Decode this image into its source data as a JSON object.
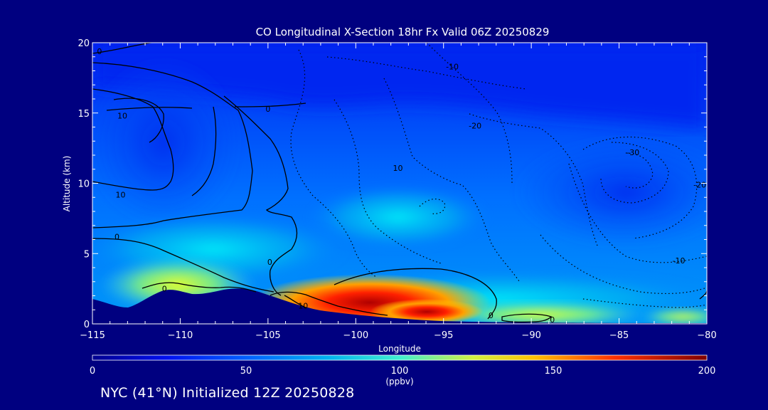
{
  "chart_data": {
    "type": "heatmap",
    "title": "CO Longitudinal X-Section 18hr  Fx Valid 06Z 20250829",
    "xlabel": "Longitude",
    "ylabel": "Altitude (km)",
    "xlim": [
      -115,
      -80
    ],
    "ylim": [
      0,
      20
    ],
    "xticks": [
      "-115",
      "-110",
      "-105",
      "-100",
      "-95",
      "-90",
      "-85",
      "-80"
    ],
    "xtick_values": [
      -115,
      -110,
      -105,
      -100,
      -95,
      -90,
      -85,
      -80
    ],
    "yticks": [
      "0",
      "5",
      "10",
      "15",
      "20"
    ],
    "ytick_values": [
      0,
      5,
      10,
      15,
      20
    ],
    "colorbar": {
      "min": 0,
      "max": 200,
      "ticks": [
        "0",
        "50",
        "100",
        "150",
        "200"
      ],
      "tick_values": [
        0,
        50,
        100,
        150,
        200
      ],
      "unit": "(ppbv)"
    },
    "contour_labels": [
      {
        "text": "0",
        "lon": -114.6,
        "alt": 19.4
      },
      {
        "text": "10",
        "lon": -113.3,
        "alt": 14.8
      },
      {
        "text": "0",
        "lon": -105.0,
        "alt": 15.3
      },
      {
        "text": "10",
        "lon": -113.4,
        "alt": 9.2
      },
      {
        "text": "0",
        "lon": -113.6,
        "alt": 6.2
      },
      {
        "text": "0",
        "lon": -110.9,
        "alt": 2.5
      },
      {
        "text": "0",
        "lon": -104.9,
        "alt": 4.4
      },
      {
        "text": "10",
        "lon": -103.0,
        "alt": 1.3
      },
      {
        "text": "10",
        "lon": -97.6,
        "alt": 11.1
      },
      {
        "text": "-10",
        "lon": -94.5,
        "alt": 18.3
      },
      {
        "text": "-20",
        "lon": -93.2,
        "alt": 14.1
      },
      {
        "text": "-30",
        "lon": -84.2,
        "alt": 12.2
      },
      {
        "text": "-20",
        "lon": -80.4,
        "alt": 9.9
      },
      {
        "text": "-10",
        "lon": -81.6,
        "alt": 4.5
      },
      {
        "text": "0",
        "lon": -92.3,
        "alt": 0.6
      },
      {
        "text": "0",
        "lon": -88.8,
        "alt": 0.3
      }
    ]
  },
  "footer": "NYC (41°N) Initialized 12Z 20250828"
}
